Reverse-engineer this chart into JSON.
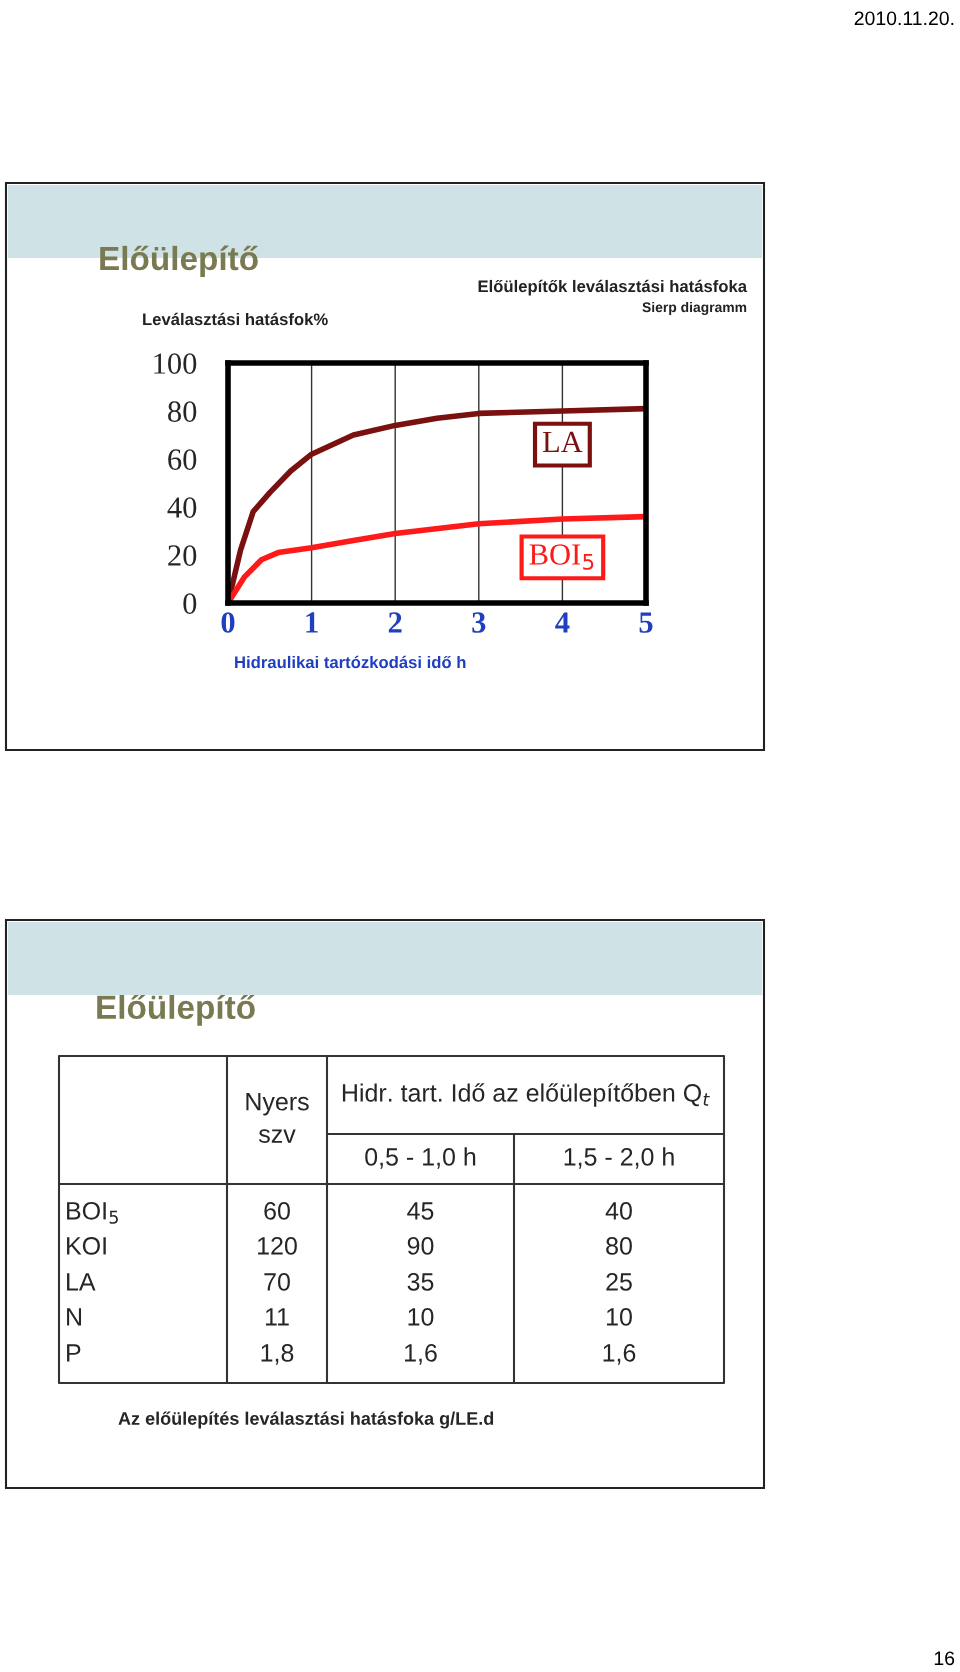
{
  "chart_data": [
    {
      "type": "line",
      "title": "Előülepítők leválasztási hatásfoka",
      "subtitle": "Sierp diagramm",
      "ylabel": "Leválasztási hatásfok%",
      "xlabel": "Hidraulikai tartózkodási idő h",
      "annotations": [
        "Előülepítő",
        "2010.11.20.",
        "16"
      ],
      "xlim": [
        0,
        5
      ],
      "ylim": [
        0,
        100
      ],
      "xticks": [
        0,
        1,
        2,
        3,
        4,
        5
      ],
      "yticks": [
        0,
        20,
        40,
        60,
        80,
        100
      ],
      "grid": "x",
      "legend": false,
      "marker": "none",
      "line_style": "solid",
      "series": [
        {
          "name": "LA",
          "color": "#7b1010",
          "x": [
            0,
            0.15,
            0.3,
            0.5,
            0.75,
            1,
            1.5,
            2,
            2.5,
            3,
            4,
            5
          ],
          "values": [
            0,
            22,
            38,
            46,
            55,
            62,
            70,
            74,
            77,
            79,
            80,
            81
          ]
        },
        {
          "name": "BOI$_{5}$",
          "color": "#ff1a1a",
          "x": [
            0,
            0.2,
            0.4,
            0.6,
            1,
            1.5,
            2,
            3,
            4,
            5
          ],
          "values": [
            0,
            11,
            18,
            21,
            23,
            26,
            29,
            33,
            35,
            36
          ]
        }
      ]
    },
    {
      "type": "other",
      "title": "Előülepítő",
      "legend_title": "Hidr. tart. Idő az előülepítőben Q$_{t}$",
      "annotations": [
        "Az előülepítés leválasztási hatásfoka g/LE.d"
      ],
      "categories": [
        "BOI$_{5}$",
        "KOI",
        "LA",
        "N",
        "P"
      ],
      "series": [
        {
          "name": "Nyers szv",
          "values": [
            60,
            120,
            70,
            11,
            1.8
          ],
          "value_labels": [
            "60",
            "120",
            "70",
            "11",
            "1,8"
          ]
        },
        {
          "name": "0,5 - 1,0 h",
          "values": [
            45,
            90,
            35,
            10,
            1.6
          ],
          "value_labels": [
            "45",
            "90",
            "35",
            "10",
            "1,6"
          ]
        },
        {
          "name": "1,5 - 2,0 h",
          "values": [
            40,
            80,
            25,
            10,
            1.6
          ],
          "value_labels": [
            "40",
            "80",
            "25",
            "10",
            "1,6"
          ]
        }
      ]
    }
  ]
}
